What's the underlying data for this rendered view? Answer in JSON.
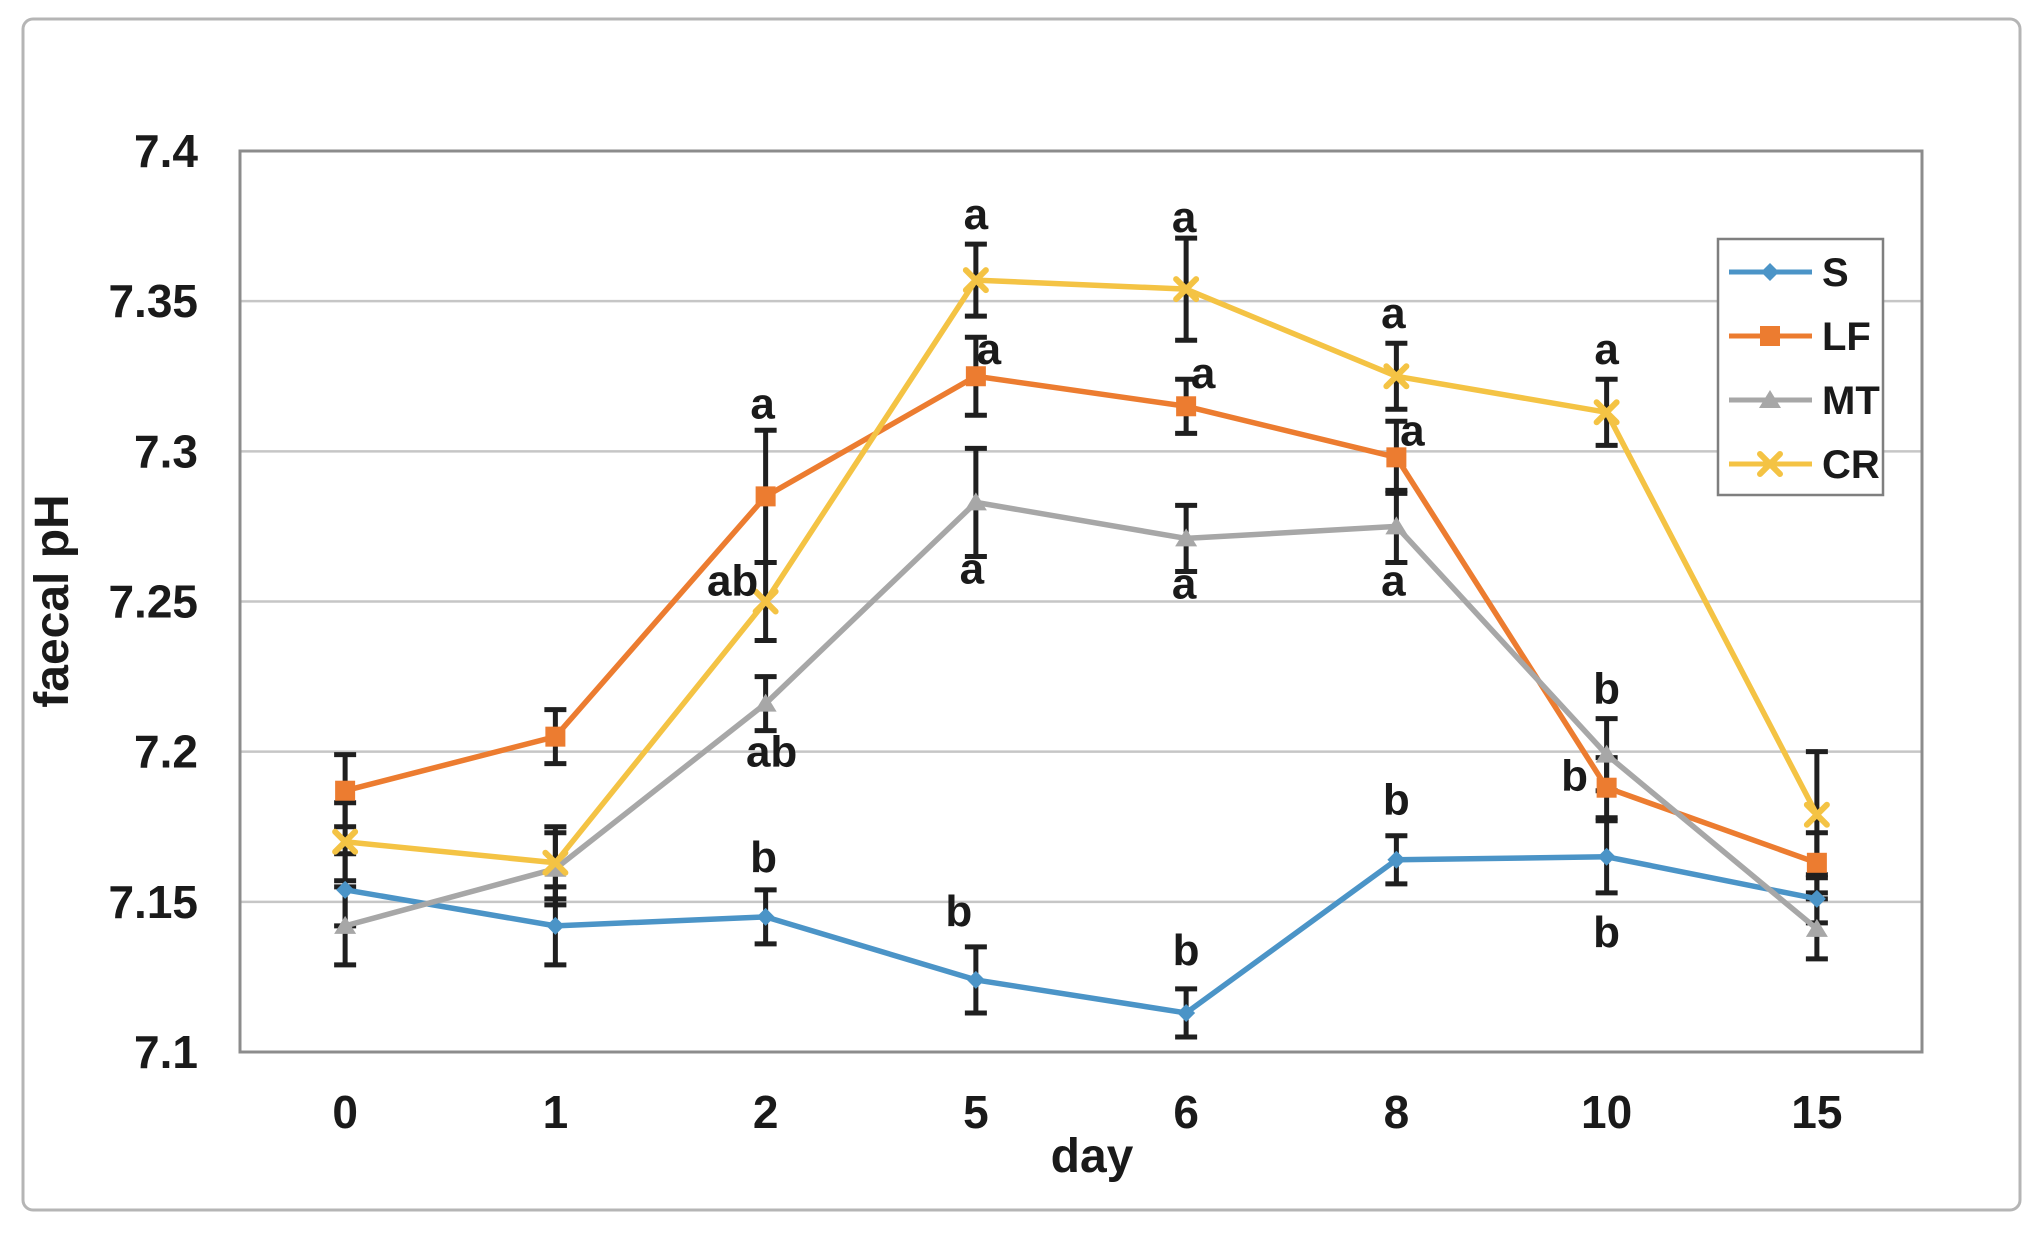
{
  "figure": {
    "background": "#ffffff",
    "border_color": "#b5b5b5"
  },
  "chart_data": {
    "type": "line",
    "title": "",
    "xlabel": "day",
    "ylabel": "faecal pH",
    "categories": [
      "0",
      "1",
      "2",
      "5",
      "6",
      "8",
      "10",
      "15"
    ],
    "ylim": [
      7.1,
      7.4
    ],
    "yticks": [
      7.1,
      7.15,
      7.2,
      7.25,
      7.3,
      7.35,
      7.4
    ],
    "ytick_labels": [
      "7.1",
      "7.15",
      "7.2",
      "7.25",
      "7.3",
      "7.35",
      "7.4"
    ],
    "grid": true,
    "legend_position": "upper-right-inside",
    "gridline_color": "#c6c6c6",
    "plot_border_color": "#8c8c8c",
    "error_bar_color": "#1f1f1f",
    "text_color": "#1a1a1a",
    "series": [
      {
        "name": "S",
        "color": "#4B94C7",
        "marker": "diamond",
        "values": [
          7.154,
          7.142,
          7.145,
          7.124,
          7.113,
          7.164,
          7.165,
          7.151
        ],
        "errors": [
          0.012,
          0.013,
          0.009,
          0.011,
          0.008,
          0.008,
          0.012,
          0.008
        ]
      },
      {
        "name": "LF",
        "color": "#EC7C30",
        "marker": "square",
        "values": [
          7.187,
          7.205,
          7.285,
          7.325,
          7.315,
          7.298,
          7.188,
          7.163
        ],
        "errors": [
          0.012,
          0.009,
          0.022,
          0.013,
          0.009,
          0.012,
          0.01,
          0.01
        ]
      },
      {
        "name": "MT",
        "color": "#A7A7A7",
        "marker": "triangle",
        "values": [
          7.142,
          7.161,
          7.216,
          7.283,
          7.271,
          7.275,
          7.199,
          7.141
        ],
        "errors": [
          0.013,
          0.012,
          0.009,
          0.018,
          0.011,
          0.012,
          0.012,
          0.01
        ]
      },
      {
        "name": "CR",
        "color": "#F4C344",
        "marker": "x",
        "values": [
          7.17,
          7.163,
          7.25,
          7.357,
          7.354,
          7.325,
          7.313,
          7.179
        ],
        "errors": [
          0.013,
          0.012,
          0.013,
          0.012,
          0.017,
          0.011,
          0.011,
          0.021
        ]
      }
    ],
    "annotations": [
      {
        "label": "a",
        "x_index": 2,
        "y": 7.316,
        "dx": -3
      },
      {
        "label": "ab",
        "x_index": 2,
        "y": 7.257,
        "dx": -33
      },
      {
        "label": "ab",
        "x_index": 2,
        "y": 7.2,
        "dx": 6
      },
      {
        "label": "b",
        "x_index": 2,
        "y": 7.165,
        "dx": -2
      },
      {
        "label": "a",
        "x_index": 3,
        "y": 7.379,
        "dx": 0
      },
      {
        "label": "a",
        "x_index": 3,
        "y": 7.334,
        "dx": 13
      },
      {
        "label": "a",
        "x_index": 3,
        "y": 7.261,
        "dx": -4
      },
      {
        "label": "b",
        "x_index": 3,
        "y": 7.147,
        "dx": -17
      },
      {
        "label": "a",
        "x_index": 4,
        "y": 7.378,
        "dx": -2
      },
      {
        "label": "a",
        "x_index": 4,
        "y": 7.326,
        "dx": 17
      },
      {
        "label": "a",
        "x_index": 4,
        "y": 7.256,
        "dx": -2
      },
      {
        "label": "b",
        "x_index": 4,
        "y": 7.134,
        "dx": 0
      },
      {
        "label": "a",
        "x_index": 5,
        "y": 7.346,
        "dx": -3
      },
      {
        "label": "a",
        "x_index": 5,
        "y": 7.307,
        "dx": 16
      },
      {
        "label": "a",
        "x_index": 5,
        "y": 7.257,
        "dx": -3
      },
      {
        "label": "b",
        "x_index": 5,
        "y": 7.184,
        "dx": 0
      },
      {
        "label": "a",
        "x_index": 6,
        "y": 7.334,
        "dx": 0
      },
      {
        "label": "b",
        "x_index": 6,
        "y": 7.221,
        "dx": 0
      },
      {
        "label": "b",
        "x_index": 6,
        "y": 7.192,
        "dx": -32
      },
      {
        "label": "b",
        "x_index": 6,
        "y": 7.14,
        "dx": 0
      }
    ]
  }
}
